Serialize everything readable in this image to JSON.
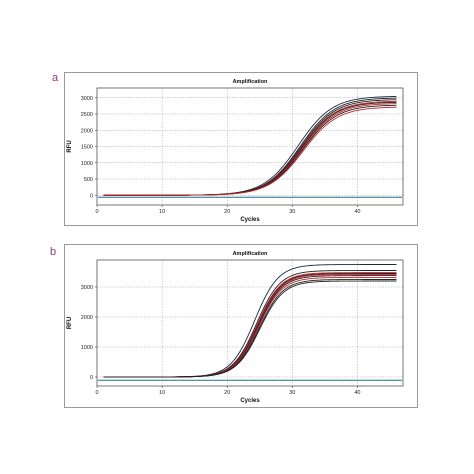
{
  "panels": [
    {
      "label": "a"
    },
    {
      "label": "b"
    }
  ],
  "colors": {
    "black_curve": "#222222",
    "navy_curve": "#1a2a4a",
    "red_curve": "#c0262b",
    "baseline": "#1f6f8b",
    "grid": "#8f8f8f"
  },
  "chart_data": [
    {
      "type": "line",
      "title": "Amplification",
      "xlabel": "Cycles",
      "ylabel": "RFU",
      "xlim": [
        0,
        47
      ],
      "ylim": [
        -300,
        3300
      ],
      "xticks": [
        0,
        10,
        20,
        30,
        40
      ],
      "yticks": [
        0,
        500,
        1000,
        1500,
        2000,
        2500,
        3000
      ],
      "grid": true,
      "baseline_y": -60,
      "x_start": 1,
      "x_end": 46,
      "midpoint_cycle": 31.2,
      "slope": 0.38,
      "series": [
        {
          "plateau": 3050,
          "color": "navy",
          "offset": -0.3
        },
        {
          "plateau": 3000,
          "color": "black",
          "offset": 0.0
        },
        {
          "plateau": 2950,
          "color": "black",
          "offset": 0.1
        },
        {
          "plateau": 2900,
          "color": "red",
          "offset": 0.15
        },
        {
          "plateau": 2870,
          "color": "black",
          "offset": 0.2
        },
        {
          "plateau": 2830,
          "color": "red",
          "offset": 0.3
        },
        {
          "plateau": 2780,
          "color": "black",
          "offset": 0.35
        },
        {
          "plateau": 2720,
          "color": "red",
          "offset": 0.45
        }
      ]
    },
    {
      "type": "line",
      "title": "Amplification",
      "xlabel": "Cycles",
      "ylabel": "RFU",
      "xlim": [
        0,
        47
      ],
      "ylim": [
        -300,
        3900
      ],
      "xticks": [
        0,
        10,
        20,
        30,
        40
      ],
      "yticks": [
        0,
        1000,
        2000,
        3000
      ],
      "grid": true,
      "baseline_y": -110,
      "x_start": 1,
      "x_end": 46,
      "midpoint_cycle": 24.6,
      "slope": 0.55,
      "series": [
        {
          "plateau": 3750,
          "color": "navy",
          "offset": -0.4
        },
        {
          "plateau": 3550,
          "color": "black",
          "offset": -0.1
        },
        {
          "plateau": 3480,
          "color": "red",
          "offset": 0.0
        },
        {
          "plateau": 3450,
          "color": "black",
          "offset": 0.05
        },
        {
          "plateau": 3420,
          "color": "red",
          "offset": 0.1
        },
        {
          "plateau": 3380,
          "color": "black",
          "offset": 0.15
        },
        {
          "plateau": 3320,
          "color": "red",
          "offset": 0.2
        },
        {
          "plateau": 3250,
          "color": "black",
          "offset": 0.3
        },
        {
          "plateau": 3200,
          "color": "black",
          "offset": 0.4
        }
      ]
    }
  ]
}
